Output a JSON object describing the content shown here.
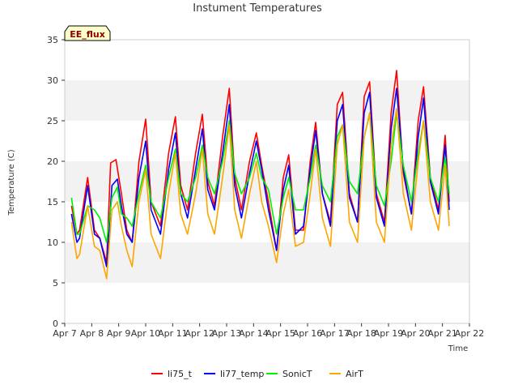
{
  "chart_data": {
    "type": "line",
    "title": "Instument Temperatures",
    "xlabel": "Time",
    "ylabel": "Temperature (C)",
    "badge": "EE_flux",
    "xlim": [
      7,
      22
    ],
    "ylim": [
      0,
      35
    ],
    "x_ticks": [
      7,
      8,
      9,
      10,
      11,
      12,
      13,
      14,
      15,
      16,
      17,
      18,
      19,
      20,
      21,
      22
    ],
    "x_tick_labels": [
      "Apr 7",
      "Apr 8",
      "Apr 9",
      "Apr 10",
      "Apr 11",
      "Apr 12",
      "Apr 13",
      "Apr 14",
      "Apr 15",
      "Apr 16",
      "Apr 17",
      "Apr 18",
      "Apr 19",
      "Apr 20",
      "Apr 21",
      "Apr 22"
    ],
    "y_ticks": [
      0,
      5,
      10,
      15,
      20,
      25,
      30,
      35
    ],
    "y_tick_labels": [
      "0",
      "5",
      "10",
      "15",
      "20",
      "25",
      "30",
      "35"
    ],
    "grid": "horizontal bands",
    "legend_position": "bottom",
    "colors": {
      "li75_t": "#ff0000",
      "li77_temp": "#0000ff",
      "SonicT": "#00ee00",
      "AirT": "#ffa500",
      "band": "#f2f2f2",
      "badge_fill": "#ffffcc"
    },
    "series": [
      {
        "name": "li75_t",
        "color": "#ff0000",
        "x": [
          7.25,
          7.45,
          7.55,
          7.85,
          8.1,
          8.3,
          8.55,
          8.7,
          8.9,
          9.1,
          9.3,
          9.5,
          9.75,
          10.0,
          10.2,
          10.55,
          10.85,
          11.1,
          11.3,
          11.55,
          11.85,
          12.1,
          12.3,
          12.55,
          12.85,
          13.1,
          13.3,
          13.55,
          13.85,
          14.1,
          14.3,
          14.55,
          14.85,
          15.1,
          15.3,
          15.55,
          15.85,
          16.1,
          16.3,
          16.55,
          16.85,
          17.1,
          17.3,
          17.55,
          17.85,
          18.1,
          18.3,
          18.55,
          18.85,
          19.1,
          19.3,
          19.55,
          19.85,
          20.1,
          20.3,
          20.55,
          20.85,
          21.1,
          21.25
        ],
        "values": [
          14.5,
          11.0,
          11.5,
          18.0,
          11.5,
          10.5,
          7.5,
          19.8,
          20.2,
          16.0,
          11.5,
          10.0,
          20.0,
          25.2,
          15.0,
          12.0,
          21.0,
          25.5,
          17.0,
          14.0,
          21.0,
          25.8,
          17.5,
          14.5,
          23.0,
          29.0,
          18.0,
          14.0,
          20.0,
          23.5,
          19.5,
          15.0,
          9.0,
          18.0,
          20.8,
          11.5,
          11.5,
          20.0,
          24.8,
          16.0,
          12.5,
          27.0,
          28.5,
          16.0,
          12.5,
          28.0,
          29.8,
          16.0,
          12.5,
          26.0,
          31.2,
          18.5,
          13.5,
          25.0,
          29.2,
          18.0,
          14.0,
          23.2,
          15.0
        ]
      },
      {
        "name": "li77_temp",
        "color": "#0000ff",
        "x": [
          7.25,
          7.45,
          7.55,
          7.85,
          8.1,
          8.3,
          8.55,
          8.75,
          8.95,
          9.1,
          9.3,
          9.5,
          9.75,
          10.0,
          10.2,
          10.55,
          10.85,
          11.1,
          11.3,
          11.55,
          11.85,
          12.1,
          12.3,
          12.55,
          12.85,
          13.1,
          13.3,
          13.55,
          13.85,
          14.1,
          14.3,
          14.55,
          14.85,
          15.1,
          15.3,
          15.55,
          15.85,
          16.1,
          16.3,
          16.55,
          16.85,
          17.1,
          17.3,
          17.55,
          17.85,
          18.1,
          18.3,
          18.55,
          18.85,
          19.1,
          19.3,
          19.55,
          19.85,
          20.1,
          20.3,
          20.55,
          20.85,
          21.1,
          21.25
        ],
        "values": [
          13.5,
          10.0,
          10.5,
          17.0,
          11.0,
          10.5,
          7.0,
          17.0,
          17.8,
          14.5,
          11.0,
          10.0,
          18.0,
          22.5,
          14.0,
          11.0,
          19.0,
          23.5,
          16.0,
          13.0,
          19.0,
          24.0,
          16.5,
          14.0,
          21.0,
          27.0,
          17.0,
          13.0,
          18.5,
          22.5,
          19.0,
          14.0,
          9.0,
          16.5,
          19.5,
          11.0,
          12.0,
          19.0,
          23.8,
          16.0,
          12.0,
          25.0,
          27.0,
          15.5,
          12.5,
          26.0,
          28.5,
          15.5,
          12.0,
          24.0,
          29.0,
          19.0,
          13.5,
          23.0,
          27.8,
          17.5,
          13.5,
          22.0,
          14.0
        ]
      },
      {
        "name": "SonicT",
        "color": "#00ee00",
        "x": [
          7.25,
          7.45,
          7.55,
          7.85,
          8.1,
          8.3,
          8.55,
          8.75,
          8.95,
          9.1,
          9.3,
          9.5,
          9.75,
          10.0,
          10.2,
          10.55,
          10.85,
          11.1,
          11.3,
          11.55,
          11.85,
          12.1,
          12.3,
          12.55,
          12.85,
          13.1,
          13.3,
          13.55,
          13.85,
          14.1,
          14.3,
          14.55,
          14.85,
          15.1,
          15.3,
          15.55,
          15.85,
          16.1,
          16.3,
          16.55,
          16.85,
          17.1,
          17.3,
          17.55,
          17.85,
          18.1,
          18.3,
          18.55,
          18.85,
          19.1,
          19.3,
          19.55,
          19.85,
          20.1,
          20.3,
          20.55,
          20.85,
          21.1,
          21.25
        ],
        "values": [
          15.5,
          11.0,
          11.0,
          14.5,
          14.0,
          13.0,
          10.0,
          15.5,
          16.8,
          13.5,
          13.0,
          12.0,
          16.0,
          19.5,
          15.0,
          13.0,
          18.0,
          21.5,
          16.0,
          15.0,
          18.0,
          22.0,
          18.0,
          16.0,
          20.0,
          25.0,
          18.5,
          16.0,
          18.0,
          21.0,
          18.0,
          16.5,
          11.0,
          15.5,
          18.0,
          14.0,
          14.0,
          18.0,
          22.0,
          17.0,
          15.0,
          23.0,
          24.5,
          17.5,
          16.0,
          23.0,
          25.8,
          17.0,
          14.5,
          20.0,
          26.0,
          19.5,
          15.0,
          21.0,
          25.0,
          18.0,
          15.0,
          20.5,
          16.0
        ]
      },
      {
        "name": "AirT",
        "color": "#ffa500",
        "x": [
          7.25,
          7.45,
          7.55,
          7.85,
          8.1,
          8.3,
          8.55,
          8.75,
          8.95,
          9.1,
          9.3,
          9.5,
          9.75,
          10.0,
          10.2,
          10.55,
          10.85,
          11.1,
          11.3,
          11.55,
          11.85,
          12.1,
          12.3,
          12.55,
          12.85,
          13.1,
          13.3,
          13.55,
          13.85,
          14.1,
          14.3,
          14.55,
          14.85,
          15.1,
          15.3,
          15.55,
          15.85,
          16.1,
          16.3,
          16.55,
          16.85,
          17.1,
          17.3,
          17.55,
          17.85,
          18.1,
          18.3,
          18.55,
          18.85,
          19.1,
          19.3,
          19.55,
          19.85,
          20.1,
          20.3,
          20.55,
          20.85,
          21.1,
          21.25
        ],
        "values": [
          12.5,
          8.0,
          8.5,
          14.5,
          9.5,
          9.0,
          5.5,
          14.0,
          15.0,
          12.0,
          9.0,
          7.0,
          15.0,
          19.0,
          11.0,
          8.0,
          16.0,
          21.0,
          13.5,
          11.0,
          16.0,
          21.5,
          13.5,
          11.0,
          18.0,
          24.5,
          14.0,
          10.5,
          16.0,
          20.0,
          15.0,
          12.0,
          7.5,
          13.5,
          16.5,
          9.5,
          10.0,
          16.0,
          21.5,
          13.0,
          9.5,
          22.0,
          24.5,
          12.5,
          10.0,
          23.0,
          26.0,
          12.5,
          10.0,
          22.0,
          26.5,
          16.0,
          11.5,
          20.0,
          25.0,
          15.0,
          11.5,
          19.5,
          12.0
        ]
      }
    ]
  }
}
